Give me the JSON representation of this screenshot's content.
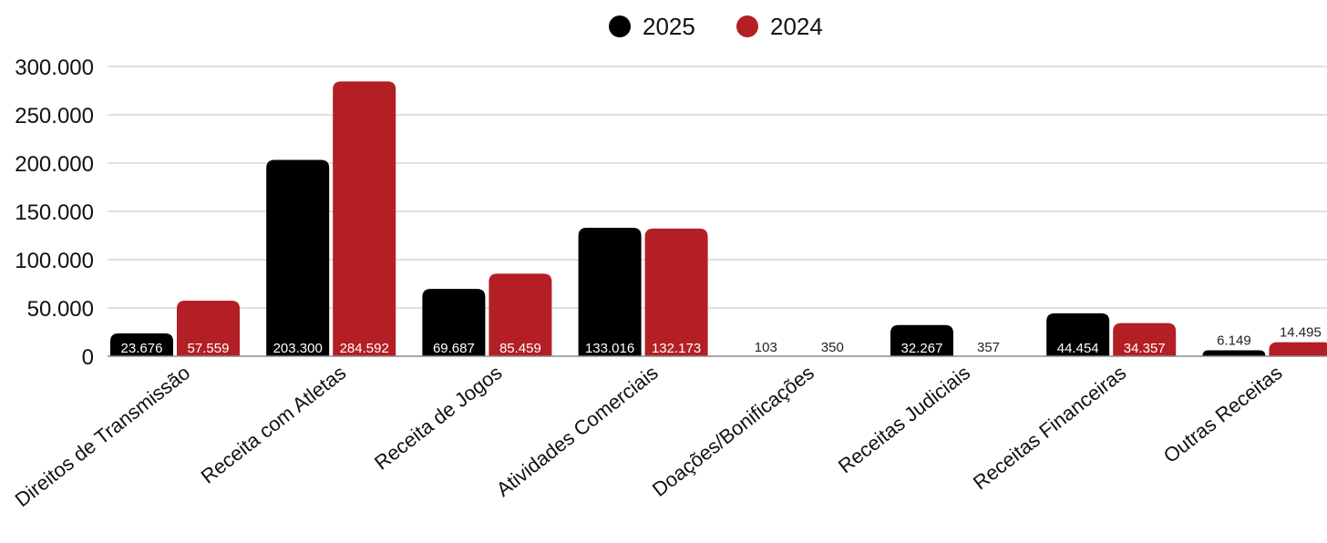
{
  "colors": {
    "s2025": "#000000",
    "s2024": "#b31f24",
    "grid": "#d6d6d6",
    "axis": "#8c8c8c"
  },
  "chart_data": {
    "type": "bar",
    "categories": [
      "Direitos de Transmissão",
      "Receita com Atletas",
      "Receita de Jogos",
      "Atividades Comerciais",
      "Doações/Bonificações",
      "Receitas Judiciais",
      "Receitas Financeiras",
      "Outras Receitas"
    ],
    "series": [
      {
        "name": "2025",
        "color": "#000000",
        "values": [
          23676,
          203300,
          69687,
          133016,
          103,
          32267,
          44454,
          6149
        ],
        "labels": [
          "23.676",
          "203.300",
          "69.687",
          "133.016",
          "103",
          "32.267",
          "44.454",
          "6.149"
        ]
      },
      {
        "name": "2024",
        "color": "#b31f24",
        "values": [
          57559,
          284592,
          85459,
          132173,
          350,
          357,
          34357,
          14495
        ],
        "labels": [
          "57.559",
          "284.592",
          "85.459",
          "132.173",
          "350",
          "357",
          "34.357",
          "14.495"
        ]
      }
    ],
    "yticks": [
      0,
      50000,
      100000,
      150000,
      200000,
      250000,
      300000
    ],
    "ytick_labels": [
      "0",
      "50.000",
      "100.000",
      "150.000",
      "200.000",
      "250.000",
      "300.000"
    ],
    "ylim": [
      0,
      300000
    ],
    "grid": true,
    "legend": "top-center",
    "xlabel": "",
    "ylabel": ""
  }
}
